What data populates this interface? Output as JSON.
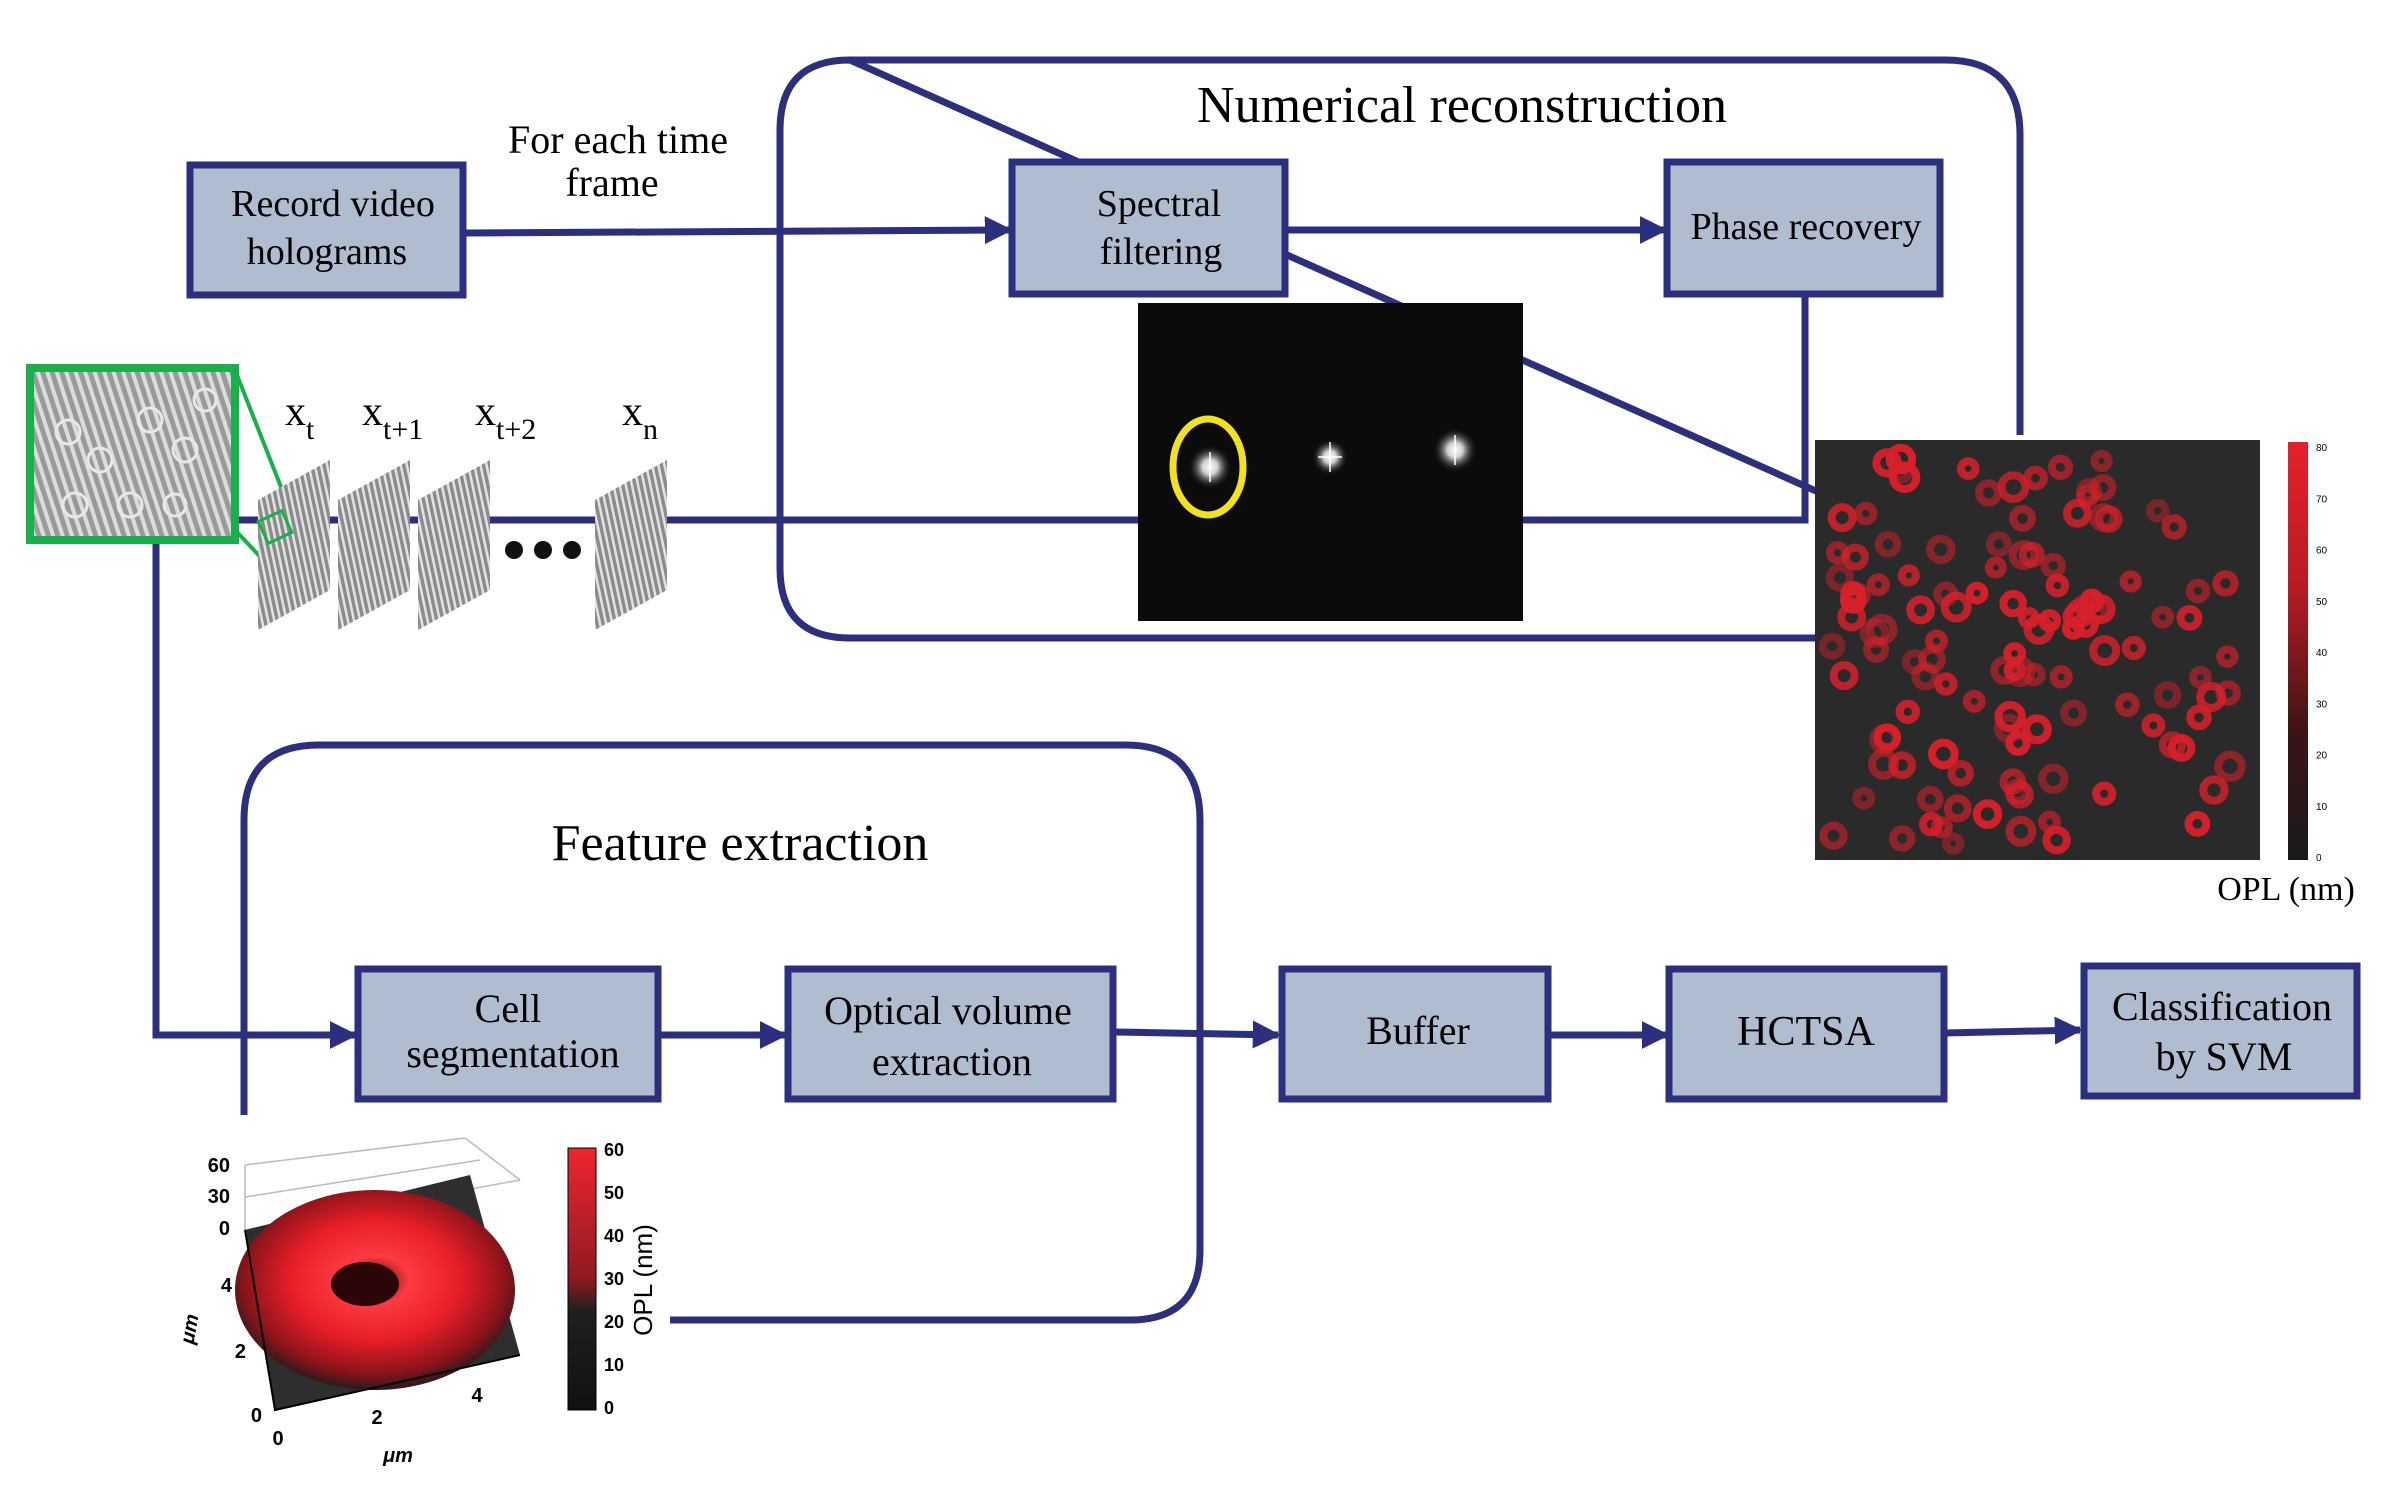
{
  "groups": {
    "numerical_reconstruction": "Numerical reconstruction",
    "feature_extraction": "Feature extraction"
  },
  "steps": {
    "record": [
      "Record video",
      "holograms"
    ],
    "spectral": [
      "Spectral",
      "filtering"
    ],
    "phase": "Phase recovery",
    "segmentation": [
      "Cell",
      "segmentation"
    ],
    "optical_volume": [
      "Optical volume",
      "extraction"
    ],
    "buffer": "Buffer",
    "hctsa": "HCTSA",
    "classification": [
      "Classification",
      "by SVM"
    ]
  },
  "edge_label": [
    "For each time",
    "frame"
  ],
  "frames": [
    {
      "base": "x",
      "sub": "t"
    },
    {
      "base": "x",
      "sub": "t+1"
    },
    {
      "base": "x",
      "sub": "t+2"
    },
    {
      "base": "x",
      "sub": "n"
    }
  ],
  "opl_map": {
    "colorbar_label": "OPL (nm)",
    "ticks": [
      "0",
      "10",
      "20",
      "30",
      "40",
      "50",
      "60",
      "70",
      "80"
    ]
  },
  "cell_plot": {
    "z_ticks": [
      "60",
      "30",
      "0"
    ],
    "y_ticks": [
      "4",
      "2",
      "0"
    ],
    "x_ticks": [
      "0",
      "2",
      "4"
    ],
    "x_label": "μm",
    "y_label": "μm",
    "colorbar_ticks": [
      "60",
      "50",
      "40",
      "30",
      "20",
      "10",
      "0"
    ],
    "colorbar_label": "OPL (nm)"
  },
  "colors": {
    "line": "#2b2f7e",
    "box_fill": "#b0bccf",
    "box_stroke": "#2b2f7e",
    "highlight": "#18b04a",
    "ring": "#f2e21c",
    "cell_red": "#e8202a"
  }
}
